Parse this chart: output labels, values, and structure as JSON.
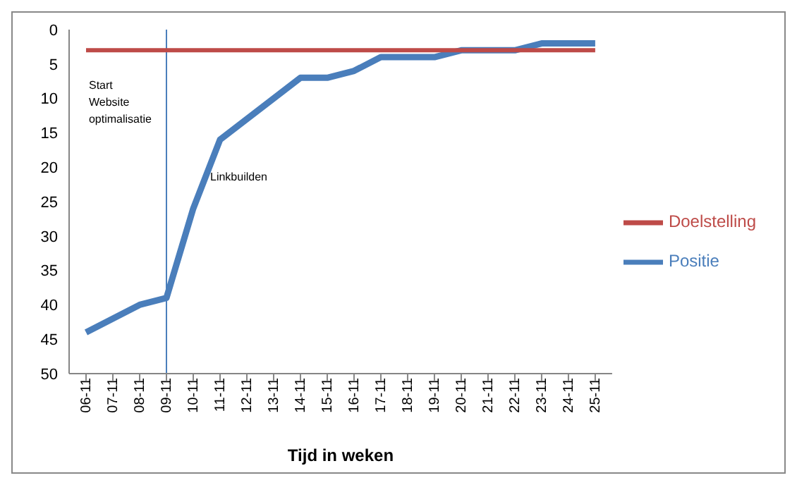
{
  "chart_data": {
    "type": "line",
    "xlabel": "Tijd in weken",
    "categories": [
      "06-11",
      "07-11",
      "08-11",
      "09-11",
      "10-11",
      "11-11",
      "12-11",
      "13-11",
      "14-11",
      "15-11",
      "16-11",
      "17-11",
      "18-11",
      "19-11",
      "20-11",
      "21-11",
      "22-11",
      "23-11",
      "24-11",
      "25-11"
    ],
    "series": [
      {
        "name": "Positie",
        "color": "#4a7ebb",
        "values": [
          44,
          42,
          40,
          39,
          26,
          16,
          13,
          10,
          7,
          7,
          6,
          4,
          4,
          4,
          3,
          3,
          3,
          2,
          2,
          2
        ]
      },
      {
        "name": "Doelstelling",
        "color": "#be4b48",
        "values": [
          3,
          3,
          3,
          3,
          3,
          3,
          3,
          3,
          3,
          3,
          3,
          3,
          3,
          3,
          3,
          3,
          3,
          3,
          3,
          3
        ]
      }
    ],
    "ylim": [
      50,
      0
    ],
    "yticks": [
      0,
      5,
      10,
      15,
      20,
      25,
      30,
      35,
      40,
      45,
      50
    ],
    "ref_lines": [
      {
        "axis": "x",
        "value": "09-11",
        "label": "Start Website optimalisatie",
        "color": "#4a7ebb"
      }
    ],
    "annotations": [
      "Linkbuilden"
    ],
    "grid": false,
    "legend": "right",
    "marker": "none",
    "line_style": "solid"
  }
}
